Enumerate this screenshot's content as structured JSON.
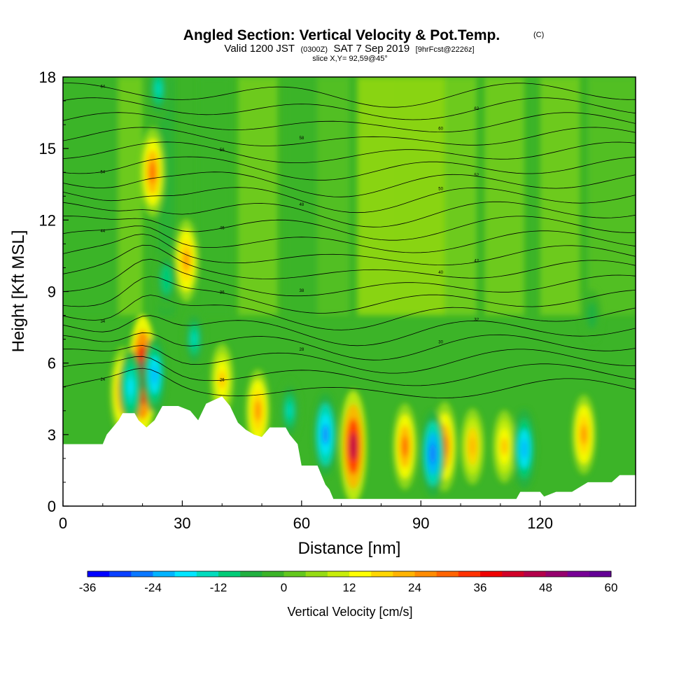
{
  "chart_data": {
    "type": "heatmap",
    "title": "Angled Section: Vertical Velocity & Pot.Temp.",
    "title_unit": "(C)",
    "subtitle_parts": [
      "Valid 1200 JST",
      "(0300Z)",
      "SAT 7 Sep 2019",
      "[9hrFcst@2226z]"
    ],
    "slice_text": "slice X,Y= 92,59@45°",
    "xlabel": "Distance [nm]",
    "ylabel": "Height [Kft MSL]",
    "xlim": [
      0,
      144
    ],
    "ylim": [
      0,
      18
    ],
    "x_ticks": [
      0,
      30,
      60,
      90,
      120
    ],
    "x_tick_labels": [
      "0",
      "30",
      "60",
      "90",
      "120"
    ],
    "y_ticks": [
      0,
      3,
      6,
      9,
      12,
      15,
      18
    ],
    "y_tick_labels": [
      "0",
      "3",
      "6",
      "9",
      "12",
      "15",
      "18"
    ],
    "colorbar": {
      "title": "Vertical Velocity [cm/s]",
      "min": -36,
      "max": 60,
      "step": 4,
      "tick_values": [
        -36,
        -24,
        -12,
        0,
        12,
        24,
        36,
        48,
        60
      ],
      "tick_labels": [
        "-36",
        "-24",
        "-12",
        "0",
        "12",
        "24",
        "36",
        "48",
        "60"
      ],
      "colors": [
        "#0000ff",
        "#0a40ff",
        "#0a78ff",
        "#00b4ff",
        "#00e6ff",
        "#00dcbe",
        "#00cc78",
        "#22b040",
        "#3cb428",
        "#64c81e",
        "#96dc14",
        "#c8ee0a",
        "#ffff00",
        "#ffd700",
        "#ffb400",
        "#ff8c00",
        "#ff6400",
        "#ff3200",
        "#f00000",
        "#d20028",
        "#b4004b",
        "#96006e",
        "#780096",
        "#640096"
      ]
    },
    "updraft_cores": [
      {
        "x": 20,
        "y": 5.5,
        "w": 48
      },
      {
        "x": 22.5,
        "y": 14,
        "w": 30
      },
      {
        "x": 31,
        "y": 10.3,
        "w": 26
      },
      {
        "x": 15,
        "y": 4.8,
        "w": 30
      },
      {
        "x": 73,
        "y": 2.5,
        "w": 44
      },
      {
        "x": 86,
        "y": 2.5,
        "w": 28
      },
      {
        "x": 96,
        "y": 2.5,
        "w": 30
      },
      {
        "x": 103,
        "y": 2.5,
        "w": 22
      },
      {
        "x": 111,
        "y": 2.5,
        "w": 20
      },
      {
        "x": 131,
        "y": 3.0,
        "w": 24
      },
      {
        "x": 49,
        "y": 4.0,
        "w": 26
      },
      {
        "x": 40,
        "y": 5.3,
        "w": 20
      }
    ],
    "downdraft_cores": [
      {
        "x": 17,
        "y": 5.0,
        "w": -20
      },
      {
        "x": 23,
        "y": 5.5,
        "w": -22
      },
      {
        "x": 24,
        "y": 17.5,
        "w": -14
      },
      {
        "x": 26,
        "y": 9.5,
        "w": -12
      },
      {
        "x": 33,
        "y": 7.0,
        "w": -14
      },
      {
        "x": 66,
        "y": 3.0,
        "w": -26
      },
      {
        "x": 93,
        "y": 2.2,
        "w": -28
      },
      {
        "x": 116,
        "y": 2.4,
        "w": -24
      },
      {
        "x": 57,
        "y": 4.0,
        "w": -14
      },
      {
        "x": 133,
        "y": 8.0,
        "w": -8
      }
    ],
    "theta_levels": [
      24,
      26,
      28,
      30,
      32,
      34,
      36,
      38,
      40,
      42,
      44,
      46,
      48,
      50,
      52,
      54,
      56,
      58,
      60,
      62,
      64
    ]
  }
}
